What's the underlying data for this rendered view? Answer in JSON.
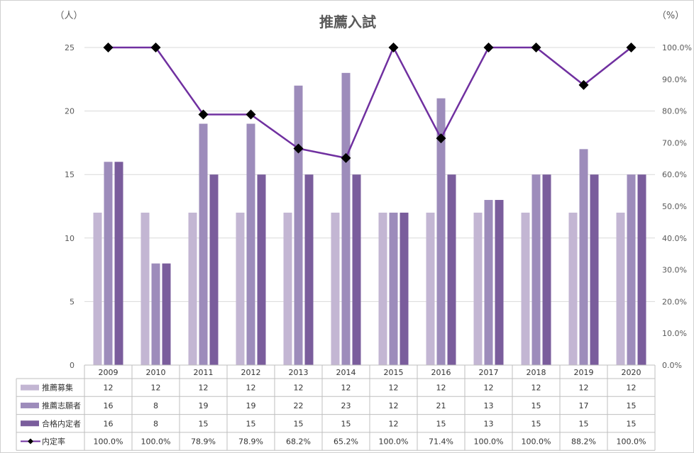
{
  "chart_data": {
    "type": "bar",
    "title": "推薦入試",
    "y_left_unit": "（人）",
    "y_right_unit": "（%）",
    "ylim_left": [
      0,
      25
    ],
    "ylim_right": [
      0,
      100
    ],
    "y_left_ticks": [
      "0",
      "5",
      "10",
      "15",
      "20",
      "25"
    ],
    "y_right_ticks": [
      "0.0%",
      "10.0%",
      "20.0%",
      "30.0%",
      "40.0%",
      "50.0%",
      "60.0%",
      "70.0%",
      "80.0%",
      "90.0%",
      "100.0%"
    ],
    "grid": true,
    "categories": [
      "2009",
      "2010",
      "2011",
      "2012",
      "2013",
      "2014",
      "2015",
      "2016",
      "2017",
      "2018",
      "2019",
      "2020"
    ],
    "series": [
      {
        "name": "推薦募集",
        "type": "bar",
        "axis": "left",
        "color": "#c3b6d3",
        "values": [
          12,
          12,
          12,
          12,
          12,
          12,
          12,
          12,
          12,
          12,
          12,
          12
        ],
        "labels": [
          "12",
          "12",
          "12",
          "12",
          "12",
          "12",
          "12",
          "12",
          "12",
          "12",
          "12",
          "12"
        ]
      },
      {
        "name": "推薦志願者",
        "type": "bar",
        "axis": "left",
        "color": "#9d8cbb",
        "values": [
          16,
          8,
          19,
          19,
          22,
          23,
          12,
          21,
          13,
          15,
          17,
          15
        ],
        "labels": [
          "16",
          "8",
          "19",
          "19",
          "22",
          "23",
          "12",
          "21",
          "13",
          "15",
          "17",
          "15"
        ]
      },
      {
        "name": "合格内定者",
        "type": "bar",
        "axis": "left",
        "color": "#7a5d9c",
        "values": [
          16,
          8,
          15,
          15,
          15,
          15,
          12,
          15,
          13,
          15,
          15,
          15
        ],
        "labels": [
          "16",
          "8",
          "15",
          "15",
          "15",
          "15",
          "12",
          "15",
          "13",
          "15",
          "15",
          "15"
        ]
      },
      {
        "name": "内定率",
        "type": "line",
        "axis": "right",
        "color": "#7030a0",
        "marker_color": "#000000",
        "values": [
          100.0,
          100.0,
          78.9,
          78.9,
          68.2,
          65.2,
          100.0,
          71.4,
          100.0,
          100.0,
          88.2,
          100.0
        ],
        "labels": [
          "100.0%",
          "100.0%",
          "78.9%",
          "78.9%",
          "68.2%",
          "65.2%",
          "100.0%",
          "71.4%",
          "100.0%",
          "100.0%",
          "88.2%",
          "100.0%"
        ]
      }
    ]
  }
}
